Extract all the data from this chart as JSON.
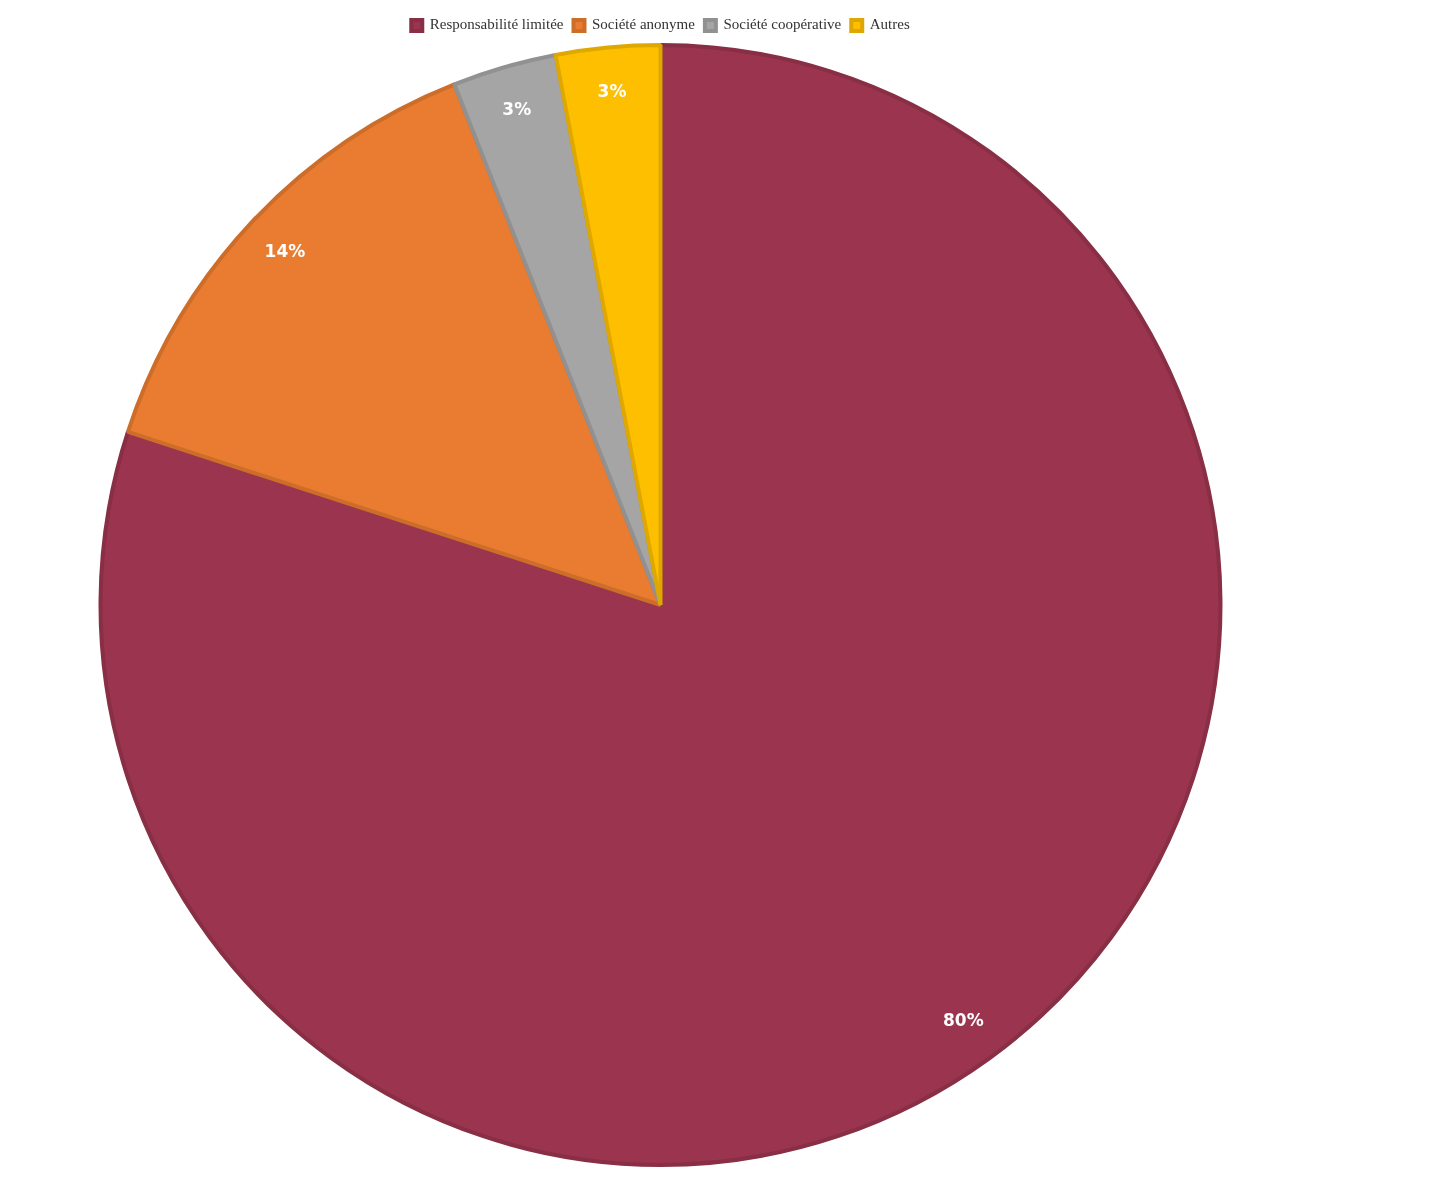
{
  "chart_data": {
    "type": "pie",
    "categories": [
      "Responsabilité limitée",
      "Société anonyme",
      "Société coopérative",
      "Autres"
    ],
    "values": [
      80,
      14,
      3,
      3
    ],
    "value_labels": [
      "80%",
      "14%",
      "3%",
      "3%"
    ],
    "colors": [
      "#9b344e",
      "#e97c30",
      "#a5a5a5",
      "#fdbf00"
    ],
    "legend": "top"
  }
}
